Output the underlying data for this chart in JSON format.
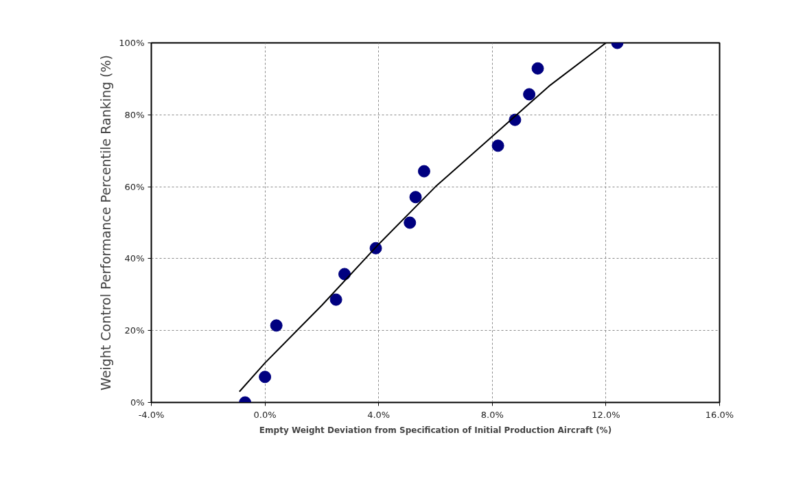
{
  "chart_data": {
    "type": "scatter",
    "xlabel": "Empty Weight Deviation from Specification of Initial Production Aircraft (%)",
    "ylabel": "Weight Control Performance Percentile Ranking (%)",
    "xlim": [
      -4,
      16
    ],
    "ylim": [
      0,
      100
    ],
    "xticks": [
      {
        "value": -4,
        "label": "-4.0%"
      },
      {
        "value": 0,
        "label": "0.0%"
      },
      {
        "value": 4,
        "label": "4.0%"
      },
      {
        "value": 8,
        "label": "8.0%"
      },
      {
        "value": 12,
        "label": "12.0%"
      },
      {
        "value": 16,
        "label": "16.0%"
      }
    ],
    "yticks": [
      {
        "value": 0,
        "label": "0%"
      },
      {
        "value": 20,
        "label": "20%"
      },
      {
        "value": 40,
        "label": "40%"
      },
      {
        "value": 60,
        "label": "60%"
      },
      {
        "value": 80,
        "label": "80%"
      },
      {
        "value": 100,
        "label": "100%"
      }
    ],
    "grid": true,
    "series": [
      {
        "marker": "circle",
        "color": "#000080",
        "x": [
          -0.7,
          0.0,
          0.4,
          2.5,
          2.8,
          3.9,
          5.1,
          5.3,
          5.6,
          8.2,
          8.8,
          9.3,
          9.6,
          12.4
        ],
        "values": [
          0,
          7.1,
          21.4,
          28.6,
          35.7,
          42.9,
          50,
          57.1,
          64.3,
          71.4,
          78.6,
          85.7,
          92.9,
          100
        ]
      },
      {
        "type": "line",
        "marker": "none",
        "line_style": "solid",
        "color": "#000000",
        "x": [
          -0.9,
          0,
          2,
          4,
          6,
          8,
          10,
          12
        ],
        "values": [
          3,
          11,
          27,
          44,
          60,
          74,
          88,
          100
        ]
      }
    ]
  }
}
